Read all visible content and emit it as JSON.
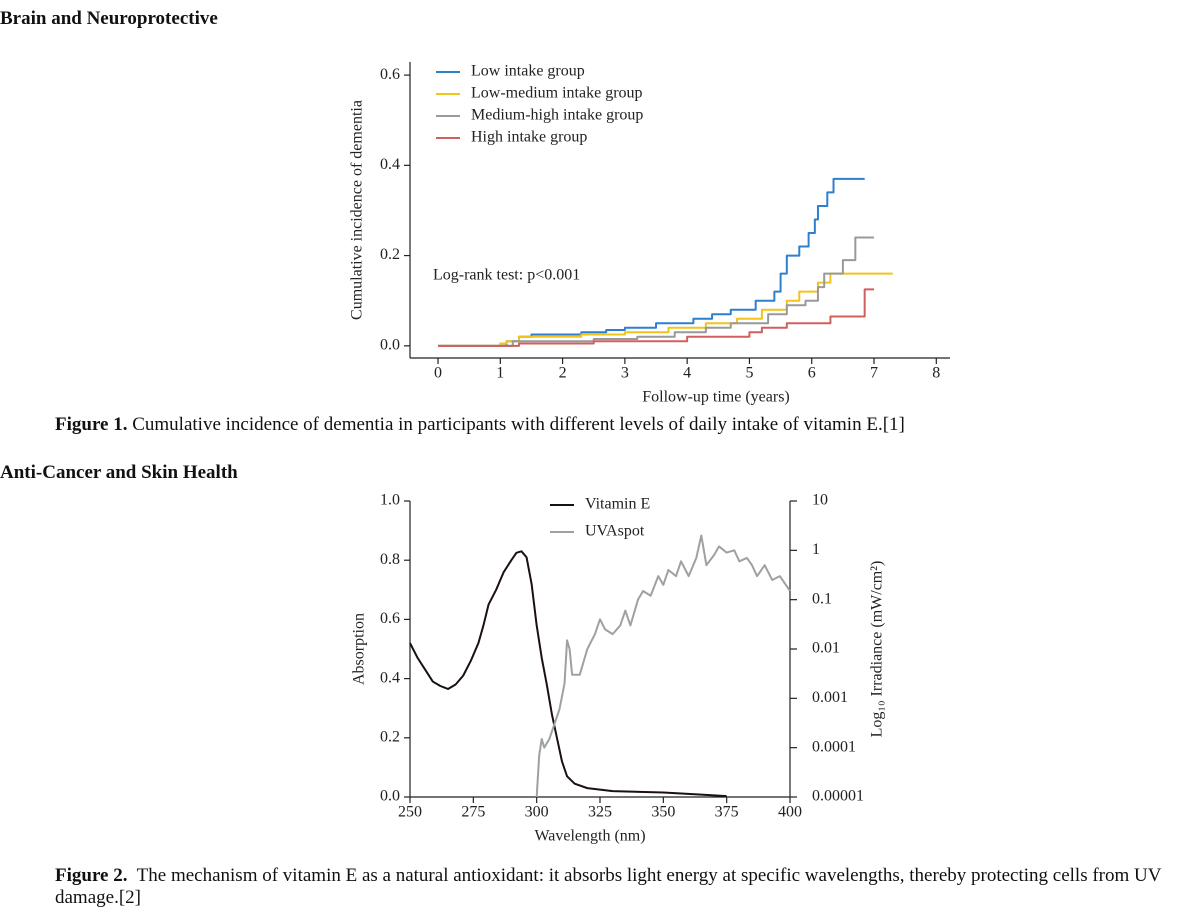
{
  "sections": [
    {
      "heading": "Brain and Neuroprotective",
      "figure": {
        "label": "Figure 1.",
        "caption": "Cumulative incidence of dementia in participants with different levels of daily intake of vitamin E.[1]"
      }
    },
    {
      "heading": "Anti-Cancer and Skin Health",
      "figure": {
        "label": "Figure 2.",
        "caption": "The mechanism of vitamin E as a natural antioxidant: it absorbs light energy at specific wavelengths, thereby protecting cells from UV damage.[2]"
      }
    }
  ],
  "chart_data": [
    {
      "type": "line",
      "step": true,
      "xlabel": "Follow-up time (years)",
      "ylabel": "Cumulative incidence of dementia",
      "annotation": "Log-rank test: p<0.001",
      "legend": "upper left",
      "xlim": [
        -0.45,
        8.22
      ],
      "xticks": [
        0,
        1,
        2,
        3,
        4,
        5,
        6,
        7,
        8
      ],
      "ylim": [
        -0.027,
        0.629
      ],
      "yticks": [
        {
          "value": 0,
          "label": "0.0"
        },
        0.2,
        0.4,
        0.6
      ],
      "series": [
        {
          "name": "Low intake group",
          "color": "#2f7fcf",
          "x": [
            0,
            1.1,
            1.3,
            1.5,
            2.3,
            2.7,
            3.0,
            3.5,
            4.1,
            4.4,
            4.7,
            5.1,
            5.4,
            5.5,
            5.6,
            5.8,
            5.95,
            6.05,
            6.1,
            6.25,
            6.35,
            6.85
          ],
          "values": [
            0,
            0.01,
            0.02,
            0.025,
            0.03,
            0.035,
            0.04,
            0.05,
            0.06,
            0.07,
            0.08,
            0.1,
            0.12,
            0.16,
            0.2,
            0.22,
            0.25,
            0.28,
            0.31,
            0.34,
            0.37,
            0.37
          ]
        },
        {
          "name": "Low-medium intake group",
          "color": "#f0c419",
          "x": [
            0,
            1.0,
            1.1,
            1.3,
            2.3,
            3.0,
            3.7,
            4.3,
            4.8,
            5.2,
            5.6,
            5.8,
            6.1,
            6.3,
            7.3
          ],
          "values": [
            0,
            0.005,
            0.01,
            0.02,
            0.025,
            0.03,
            0.04,
            0.05,
            0.06,
            0.08,
            0.1,
            0.12,
            0.14,
            0.16,
            0.16
          ]
        },
        {
          "name": "Medium-high intake group",
          "color": "#999999",
          "x": [
            0,
            1.2,
            2.5,
            3.2,
            3.8,
            4.3,
            4.7,
            5.3,
            5.6,
            5.9,
            6.1,
            6.2,
            6.5,
            6.7,
            7.0
          ],
          "values": [
            0,
            0.01,
            0.015,
            0.02,
            0.03,
            0.04,
            0.05,
            0.07,
            0.09,
            0.1,
            0.13,
            0.16,
            0.19,
            0.24,
            0.24
          ]
        },
        {
          "name": "High intake group",
          "color": "#d0605e",
          "x": [
            0,
            1.3,
            2.5,
            4.0,
            5.0,
            5.2,
            5.6,
            6.3,
            6.85,
            7.0
          ],
          "values": [
            0,
            0.005,
            0.01,
            0.02,
            0.03,
            0.04,
            0.05,
            0.065,
            0.125,
            0.125
          ]
        }
      ]
    },
    {
      "type": "line",
      "step": false,
      "xlabel": "Wavelength (nm)",
      "ylabel": "Absorption",
      "y2label": "Log₁₀ Irradiance (mW/cm²)",
      "legend": "upper center",
      "xlim": [
        250,
        400
      ],
      "xticks": [
        250,
        275,
        300,
        325,
        350,
        375,
        400
      ],
      "ylim": [
        0,
        1
      ],
      "yticks": [
        {
          "value": 0,
          "label": "0.0"
        },
        0.2,
        0.4,
        0.6,
        0.8,
        {
          "value": 1,
          "label": "1.0"
        }
      ],
      "y2lim": [
        1e-05,
        10
      ],
      "y2log": true,
      "y2ticks": [
        1e-05,
        0.0001,
        0.001,
        0.01,
        0.1,
        1,
        10
      ],
      "series": [
        {
          "name": "Vitamin E",
          "color": "#1a1010",
          "x": [
            250,
            253,
            256,
            259,
            262,
            265,
            268,
            271,
            274,
            277,
            279,
            281,
            284,
            287,
            290,
            292,
            294,
            296,
            298,
            300,
            302,
            304,
            306,
            308,
            310,
            312,
            315,
            320,
            330,
            350,
            365,
            375
          ],
          "values": [
            0.52,
            0.47,
            0.43,
            0.39,
            0.375,
            0.365,
            0.38,
            0.41,
            0.46,
            0.52,
            0.58,
            0.65,
            0.7,
            0.76,
            0.8,
            0.825,
            0.83,
            0.81,
            0.72,
            0.58,
            0.47,
            0.38,
            0.28,
            0.2,
            0.12,
            0.07,
            0.045,
            0.03,
            0.02,
            0.015,
            0.008,
            0.003
          ]
        },
        {
          "name": "UVAspot",
          "color": "#a0a0a0",
          "axis": "y2",
          "x": [
            300,
            301,
            302,
            303,
            305,
            307,
            309,
            311,
            312,
            313,
            314,
            317,
            320,
            323,
            325,
            327,
            330,
            333,
            335,
            337,
            340,
            342,
            345,
            348,
            350,
            352,
            355,
            357,
            360,
            363,
            365,
            367,
            370,
            372,
            375,
            378,
            380,
            383,
            385,
            387,
            390,
            393,
            396,
            400
          ],
          "values": [
            1e-05,
            7e-05,
            0.00015,
            0.0001,
            0.00015,
            0.0003,
            0.0006,
            0.002,
            0.015,
            0.01,
            0.003,
            0.003,
            0.01,
            0.02,
            0.04,
            0.025,
            0.02,
            0.03,
            0.06,
            0.03,
            0.1,
            0.15,
            0.12,
            0.3,
            0.2,
            0.4,
            0.3,
            0.6,
            0.3,
            0.7,
            2,
            0.5,
            0.8,
            1.2,
            0.9,
            1,
            0.6,
            0.7,
            0.5,
            0.3,
            0.5,
            0.25,
            0.3,
            0.15
          ]
        }
      ]
    }
  ]
}
